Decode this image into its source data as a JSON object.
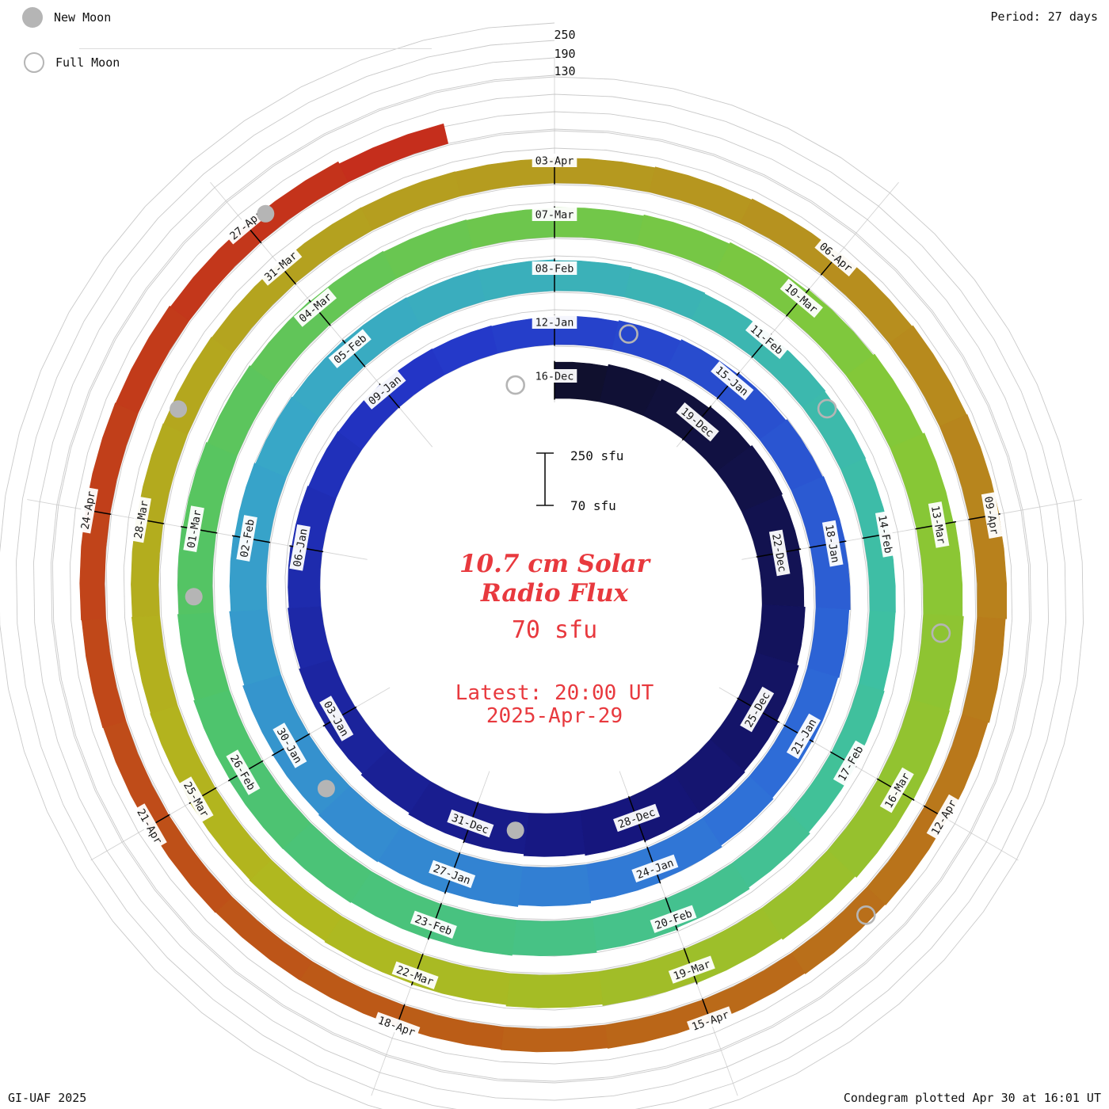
{
  "header": {
    "period_label": "Period: 27 days"
  },
  "legend": {
    "new_moon_label": "New Moon",
    "full_moon_label": "Full Moon"
  },
  "footer": {
    "left": "GI-UAF 2025",
    "right": "Condegram plotted Apr 30 at 16:01 UT"
  },
  "center": {
    "title_line1": "10.7 cm Solar",
    "title_line2": "Radio Flux",
    "current_value": "70 sfu",
    "latest_line1": "Latest: 20:00 UT",
    "latest_line2": "2025-Apr-29",
    "scale_top_label": "250 sfu",
    "scale_bottom_label": "70 sfu"
  },
  "radial_scale_labels": [
    "250",
    "190",
    "130"
  ],
  "colors": {
    "accent_red": "#e8393e",
    "moon_gray": "#b5b5b5",
    "grid_gray": "#c9c9c9"
  },
  "chart_data": {
    "type": "bar",
    "subtype": "spiral-condegram",
    "title": "10.7 cm Solar Radio Flux",
    "units": "sfu",
    "period_days": 27,
    "direction": "clockwise",
    "start_angle": "top",
    "start_date": "2024-12-16",
    "end_date": "2025-04-29",
    "flux_axis": {
      "baseline": 70,
      "refs": [
        130,
        190,
        250
      ],
      "max": 250
    },
    "date_labels": [
      "16-Dec",
      "19-Dec",
      "22-Dec",
      "25-Dec",
      "28-Dec",
      "31-Dec",
      "03-Jan",
      "06-Jan",
      "09-Jan",
      "12-Jan",
      "15-Jan",
      "18-Jan",
      "21-Jan",
      "24-Jan",
      "27-Jan",
      "30-Jan",
      "02-Feb",
      "05-Feb",
      "08-Feb",
      "11-Feb",
      "14-Feb",
      "17-Feb",
      "20-Feb",
      "23-Feb",
      "26-Feb",
      "01-Mar",
      "04-Mar",
      "07-Mar",
      "10-Mar",
      "13-Mar",
      "16-Mar",
      "19-Mar",
      "22-Mar",
      "25-Mar",
      "28-Mar",
      "31-Mar",
      "03-Apr",
      "06-Apr",
      "09-Apr",
      "12-Apr",
      "15-Apr",
      "18-Apr",
      "21-Apr",
      "24-Apr",
      "27-Apr"
    ],
    "label_interval_days": 3,
    "values": [
      195,
      202,
      210,
      216,
      222,
      218,
      214,
      218,
      224,
      230,
      234,
      230,
      224,
      218,
      212,
      206,
      200,
      194,
      189,
      184,
      180,
      176,
      173,
      171,
      169,
      167,
      165,
      168,
      172,
      177,
      182,
      187,
      191,
      188,
      184,
      180,
      178,
      183,
      189,
      196,
      203,
      209,
      213,
      216,
      212,
      206,
      200,
      195,
      190,
      186,
      183,
      181,
      179,
      177,
      174,
      171,
      168,
      166,
      163,
      161,
      159,
      158,
      161,
      165,
      171,
      177,
      183,
      189,
      193,
      196,
      199,
      200,
      197,
      193,
      189,
      185,
      181,
      177,
      174,
      171,
      169,
      171,
      175,
      180,
      186,
      192,
      198,
      204,
      208,
      210,
      206,
      200,
      194,
      188,
      183,
      178,
      175,
      172,
      170,
      168,
      166,
      164,
      162,
      160,
      158,
      157,
      156,
      155,
      156,
      159,
      163,
      167,
      171,
      173,
      171,
      167,
      163,
      159,
      156,
      153,
      151,
      149,
      147,
      146,
      147,
      149,
      151,
      153,
      155,
      156,
      154,
      150,
      148,
      140,
      70
    ],
    "moons": {
      "full_moon_days_from_start": [
        -1,
        28,
        58,
        88,
        118
      ],
      "new_moon_days_from_start": [
        14,
        44,
        74,
        103,
        132
      ]
    },
    "colormap": [
      "#10102e",
      "#16167e",
      "#2336c8",
      "#2f6fd8",
      "#38a6c8",
      "#3ec0a2",
      "#50c468",
      "#84c838",
      "#b2b71e",
      "#b6941f",
      "#bb5e17",
      "#c62a1c"
    ],
    "legend_position": "top-left",
    "grid": true
  }
}
